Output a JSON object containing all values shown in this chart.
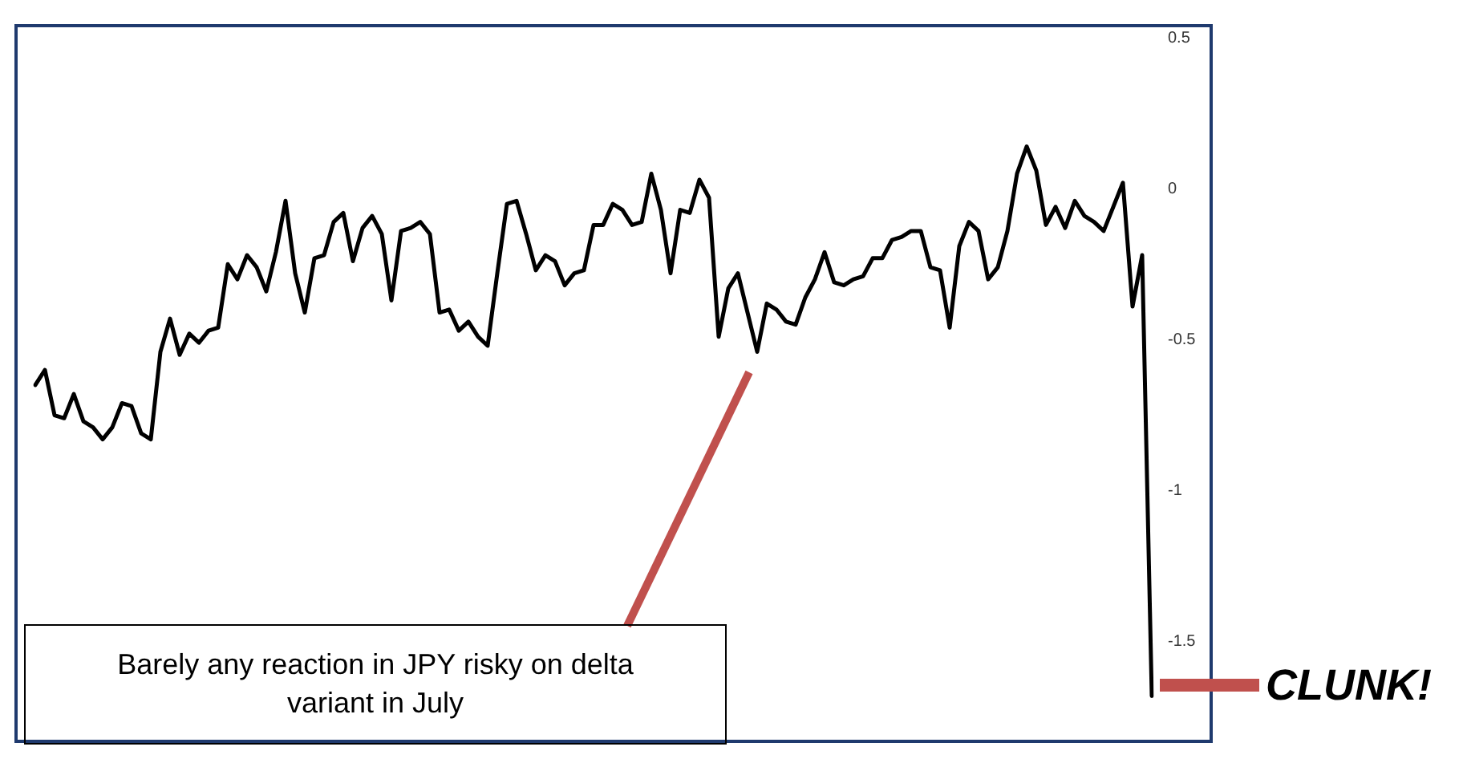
{
  "chart_data": {
    "type": "line",
    "categories": [
      null,
      null,
      null,
      null,
      null,
      null,
      null,
      null,
      null,
      null,
      null,
      null,
      null,
      null,
      null,
      null,
      null,
      null,
      null,
      null,
      null,
      null,
      null,
      null,
      null,
      null,
      null,
      null,
      null,
      null,
      null,
      null,
      null,
      null,
      null,
      null,
      null,
      null,
      null,
      null,
      null,
      null,
      null,
      null,
      null,
      null,
      null,
      null,
      null,
      null,
      null,
      null,
      null,
      null,
      null,
      null,
      null,
      null,
      null,
      null,
      null,
      null,
      null,
      null,
      null,
      null,
      null,
      null,
      null,
      null,
      null,
      null,
      null,
      null,
      null,
      null,
      null,
      null,
      null,
      null,
      null,
      null,
      null,
      null,
      null,
      null,
      null,
      null,
      null,
      null,
      null,
      null,
      null,
      null,
      null,
      null,
      null,
      null,
      null,
      null,
      null,
      null,
      null,
      null,
      null,
      null,
      null,
      null,
      null,
      null,
      null,
      null,
      null,
      null,
      null,
      null,
      null
    ],
    "series": [
      {
        "color": "#000000",
        "values": [
          -0.65,
          -0.6,
          -0.75,
          -0.76,
          -0.68,
          -0.77,
          -0.79,
          -0.83,
          -0.79,
          -0.71,
          -0.72,
          -0.81,
          -0.83,
          -0.54,
          -0.43,
          -0.55,
          -0.48,
          -0.51,
          -0.47,
          -0.46,
          -0.25,
          -0.3,
          -0.22,
          -0.26,
          -0.34,
          -0.21,
          -0.04,
          -0.28,
          -0.41,
          -0.23,
          -0.22,
          -0.11,
          -0.08,
          -0.24,
          -0.13,
          -0.09,
          -0.15,
          -0.37,
          -0.14,
          -0.13,
          -0.11,
          -0.15,
          -0.41,
          -0.4,
          -0.47,
          -0.44,
          -0.49,
          -0.52,
          -0.28,
          -0.05,
          -0.04,
          -0.15,
          -0.27,
          -0.22,
          -0.24,
          -0.32,
          -0.28,
          -0.27,
          -0.12,
          -0.12,
          -0.05,
          -0.07,
          -0.12,
          -0.11,
          0.05,
          -0.07,
          -0.28,
          -0.07,
          -0.08,
          0.03,
          -0.03,
          -0.49,
          -0.33,
          -0.28,
          -0.41,
          -0.54,
          -0.38,
          -0.4,
          -0.44,
          -0.45,
          -0.36,
          -0.3,
          -0.21,
          -0.31,
          -0.32,
          -0.3,
          -0.29,
          -0.23,
          -0.23,
          -0.17,
          -0.16,
          -0.14,
          -0.14,
          -0.26,
          -0.27,
          -0.46,
          -0.19,
          -0.11,
          -0.14,
          -0.3,
          -0.26,
          -0.14,
          0.05,
          0.14,
          0.06,
          -0.12,
          -0.06,
          -0.13,
          -0.04,
          -0.09,
          -0.11,
          -0.14,
          -0.06,
          0.02,
          -0.39,
          -0.22,
          -1.68
        ]
      }
    ],
    "ylim": [
      -1.83,
      0.54
    ],
    "yticks": [
      0.5,
      0,
      -0.5,
      -1,
      -1.5
    ],
    "tick_labels": "y",
    "legend": false,
    "marker": "none",
    "line_style": "solid",
    "annotations": [
      "Barely any reaction in JPY risky on delta variant in July",
      "CLUNK!"
    ]
  }
}
